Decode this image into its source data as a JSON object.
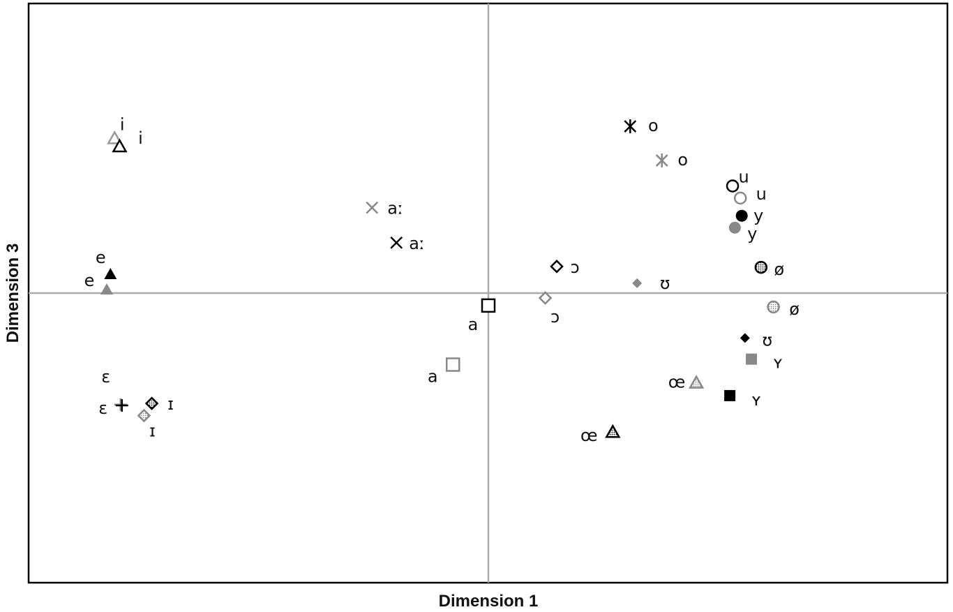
{
  "chart_data": {
    "type": "scatter",
    "title": "",
    "xlabel": "Dimension 1",
    "ylabel": "Dimension 3",
    "xlim": [
      -1,
      1
    ],
    "ylim": [
      -1,
      1
    ],
    "grid": false,
    "zero_lines": true,
    "legend": "none",
    "points": [
      {
        "label": "i",
        "x": -0.813,
        "y": 0.534,
        "marker": "triangle-open",
        "color": "#999999"
      },
      {
        "label": "i",
        "x": -0.802,
        "y": 0.506,
        "marker": "triangle-open",
        "color": "#000000"
      },
      {
        "label": "e",
        "x": -0.83,
        "y": 0.012,
        "marker": "triangle",
        "color": "#888888"
      },
      {
        "label": "e",
        "x": -0.822,
        "y": 0.065,
        "marker": "triangle",
        "color": "#000000"
      },
      {
        "label": "ɛ",
        "x": -0.8,
        "y": -0.385,
        "marker": "plus",
        "color": "#888888"
      },
      {
        "label": "ɛ",
        "x": -0.797,
        "y": -0.388,
        "marker": "plus",
        "color": "#000000"
      },
      {
        "label": "ɪ",
        "x": -0.732,
        "y": -0.381,
        "marker": "diamond-dotted",
        "color": "#000000"
      },
      {
        "label": "ɪ",
        "x": -0.749,
        "y": -0.423,
        "marker": "diamond-dotted",
        "color": "#888888"
      },
      {
        "label": "aː",
        "x": -0.253,
        "y": 0.295,
        "marker": "x",
        "color": "#888888"
      },
      {
        "label": "aː",
        "x": -0.2,
        "y": 0.174,
        "marker": "x",
        "color": "#000000"
      },
      {
        "label": "a",
        "x": 0.0,
        "y": -0.043,
        "marker": "square-open",
        "color": "#000000"
      },
      {
        "label": "a",
        "x": -0.077,
        "y": -0.247,
        "marker": "square-open",
        "color": "#888888"
      },
      {
        "label": "ɔ",
        "x": 0.149,
        "y": 0.092,
        "marker": "diamond-open",
        "color": "#000000"
      },
      {
        "label": "ɔ",
        "x": 0.124,
        "y": -0.017,
        "marker": "diamond-open",
        "color": "#888888"
      },
      {
        "label": "o",
        "x": 0.309,
        "y": 0.576,
        "marker": "asterisk",
        "color": "#000000"
      },
      {
        "label": "o",
        "x": 0.378,
        "y": 0.458,
        "marker": "asterisk",
        "color": "#888888"
      },
      {
        "label": "u",
        "x": 0.532,
        "y": 0.37,
        "marker": "circle-open",
        "color": "#000000"
      },
      {
        "label": "u",
        "x": 0.549,
        "y": 0.328,
        "marker": "circle-open",
        "color": "#888888"
      },
      {
        "label": "y",
        "x": 0.552,
        "y": 0.267,
        "marker": "circle",
        "color": "#000000"
      },
      {
        "label": "y",
        "x": 0.537,
        "y": 0.226,
        "marker": "circle",
        "color": "#888888"
      },
      {
        "label": "ʊ",
        "x": 0.324,
        "y": 0.034,
        "marker": "diamond",
        "color": "#888888"
      },
      {
        "label": "ʊ",
        "x": 0.559,
        "y": -0.155,
        "marker": "diamond",
        "color": "#000000"
      },
      {
        "label": "ø",
        "x": 0.594,
        "y": 0.089,
        "marker": "circle-dotted",
        "color": "#000000"
      },
      {
        "label": "ø",
        "x": 0.621,
        "y": -0.048,
        "marker": "circle-dotted",
        "color": "#888888"
      },
      {
        "label": "ʏ",
        "x": 0.573,
        "y": -0.228,
        "marker": "square",
        "color": "#888888"
      },
      {
        "label": "ʏ",
        "x": 0.526,
        "y": -0.354,
        "marker": "square",
        "color": "#000000"
      },
      {
        "label": "œ",
        "x": 0.453,
        "y": -0.31,
        "marker": "triangle-dotted",
        "color": "#888888"
      },
      {
        "label": "œ",
        "x": 0.271,
        "y": -0.48,
        "marker": "triangle-dotted",
        "color": "#000000"
      }
    ]
  }
}
